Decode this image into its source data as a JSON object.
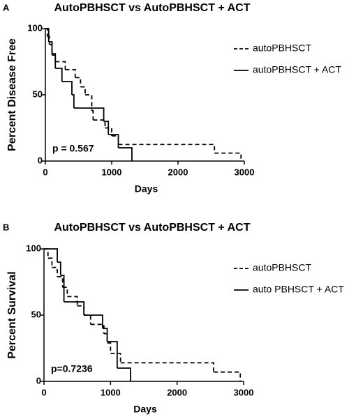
{
  "chart_data": [
    {
      "type": "step",
      "panel_label": "A",
      "title": "AutoPBHSCT vs AutoPBHSCT + ACT",
      "x_label": "Days",
      "y_label": "Percent Disease Free",
      "annotation": "p = 0.567",
      "xlim": [
        0,
        3000
      ],
      "xticks": [
        0,
        1000,
        2000,
        3000
      ],
      "ylim": [
        0,
        100
      ],
      "yticks": [
        0,
        50,
        100
      ],
      "series": [
        {
          "name": "autoPBHSCT",
          "color": "#000000",
          "dashed": true,
          "x": [
            0,
            30,
            60,
            100,
            150,
            300,
            450,
            530,
            600,
            700,
            720,
            900,
            1000,
            1100,
            2550,
            2950
          ],
          "values": [
            100,
            94,
            88,
            81,
            75,
            69,
            63,
            56,
            50,
            38,
            31,
            25,
            19,
            12.5,
            6,
            0
          ]
        },
        {
          "name": "autoPBHSCT + ACT",
          "color": "#000000",
          "dashed": false,
          "x": [
            0,
            50,
            100,
            150,
            250,
            400,
            430,
            880,
            950,
            1100,
            1305
          ],
          "values": [
            100,
            90,
            80,
            70,
            60,
            50,
            40,
            30,
            20,
            10,
            0
          ]
        }
      ]
    },
    {
      "type": "step",
      "panel_label": "B",
      "title": "AutoPBHSCT vs AutoPBHSCT + ACT",
      "x_label": "Days",
      "y_label": "Percent Survival",
      "annotation": "p=0.7236",
      "xlim": [
        0,
        3000
      ],
      "xticks": [
        0,
        1000,
        2000,
        3000
      ],
      "ylim": [
        0,
        100
      ],
      "yticks": [
        0,
        50,
        100
      ],
      "series": [
        {
          "name": "autoPBHSCT",
          "color": "#000000",
          "dashed": true,
          "x": [
            0,
            60,
            120,
            200,
            280,
            350,
            500,
            600,
            700,
            900,
            950,
            1000,
            1150,
            2550,
            2950
          ],
          "values": [
            100,
            93,
            86,
            79,
            71,
            64,
            57,
            50,
            43,
            36,
            29,
            21,
            14,
            7,
            0
          ]
        },
        {
          "name": "auto PBHSCT + ACT",
          "color": "#000000",
          "dashed": false,
          "x": [
            0,
            200,
            250,
            300,
            600,
            880,
            950,
            1100,
            1300
          ],
          "values": [
            100,
            90,
            80,
            60,
            50,
            40,
            30,
            10,
            0
          ]
        }
      ]
    }
  ]
}
